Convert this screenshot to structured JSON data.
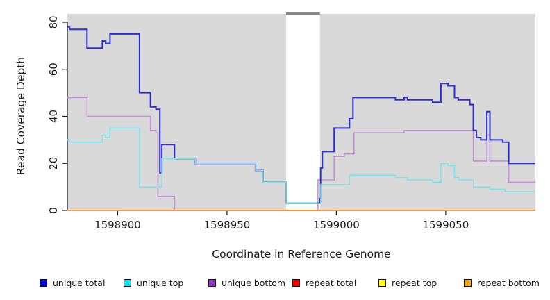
{
  "chart_data": {
    "type": "line",
    "subtype": "step-coverage-plot",
    "title": "",
    "xlabel": "Coordinate in Reference Genome",
    "ylabel": "Read Coverage Depth",
    "xlim": [
      1598877,
      1599091
    ],
    "ylim": [
      0,
      83.5
    ],
    "grid": false,
    "panel_background": "#d9d9d9",
    "x_ticks": [
      {
        "value": 1598900,
        "label": "1598900"
      },
      {
        "value": 1598950,
        "label": "1598950"
      },
      {
        "value": 1599000,
        "label": "1599000"
      },
      {
        "value": 1599050,
        "label": "1599050"
      }
    ],
    "y_ticks": [
      {
        "value": 0,
        "label": "0"
      },
      {
        "value": 20,
        "label": "20"
      },
      {
        "value": 40,
        "label": "40"
      },
      {
        "value": 60,
        "label": "60"
      },
      {
        "value": 80,
        "label": "80"
      }
    ],
    "gap_region": {
      "from": 1598977,
      "to": 1598992.5,
      "fill": "#ffffff",
      "top_bar_color": "#878787"
    },
    "series": [
      {
        "name": "unique total",
        "line_color": "#2d2dd8",
        "legend_color": "#0000dd",
        "width": 2,
        "step_points": [
          [
            1598877,
            78
          ],
          [
            1598878,
            77
          ],
          [
            1598886,
            69
          ],
          [
            1598893,
            72
          ],
          [
            1598894.5,
            71
          ],
          [
            1598896.5,
            75
          ],
          [
            1598910,
            50
          ],
          [
            1598915,
            44
          ],
          [
            1598917.5,
            43
          ],
          [
            1598919.3,
            16
          ],
          [
            1598920.2,
            28
          ],
          [
            1598926,
            22
          ],
          [
            1598935.5,
            20
          ],
          [
            1598963,
            17
          ],
          [
            1598966.5,
            12
          ],
          [
            1598977,
            3
          ],
          [
            1598992.3,
            5
          ],
          [
            1598992.8,
            18
          ],
          [
            1598993.6,
            25
          ],
          [
            1598999,
            35
          ],
          [
            1599006,
            39
          ],
          [
            1599007.6,
            48
          ],
          [
            1599027,
            47
          ],
          [
            1599031,
            48
          ],
          [
            1599032.5,
            47
          ],
          [
            1599044,
            46
          ],
          [
            1599047.8,
            54
          ],
          [
            1599051,
            53
          ],
          [
            1599054,
            48
          ],
          [
            1599055.7,
            47
          ],
          [
            1599061,
            45
          ],
          [
            1599062.6,
            34
          ],
          [
            1599064,
            31
          ],
          [
            1599066,
            30
          ],
          [
            1599068.8,
            42
          ],
          [
            1599070.2,
            30
          ],
          [
            1599076,
            29
          ],
          [
            1599078.8,
            20
          ]
        ]
      },
      {
        "name": "unique top",
        "line_color": "#78e6ee",
        "legend_color": "#00e8f0",
        "width": 1.5,
        "step_points": [
          [
            1598877,
            30
          ],
          [
            1598878,
            29
          ],
          [
            1598893,
            32
          ],
          [
            1598894.5,
            31
          ],
          [
            1598896.5,
            35
          ],
          [
            1598910,
            10
          ],
          [
            1598920.2,
            22
          ],
          [
            1598935.5,
            20
          ],
          [
            1598963,
            17
          ],
          [
            1598966.5,
            12
          ],
          [
            1598977,
            3
          ],
          [
            1598992.9,
            11
          ],
          [
            1599006,
            15
          ],
          [
            1599027,
            14
          ],
          [
            1599032.5,
            13
          ],
          [
            1599044,
            12
          ],
          [
            1599047.8,
            20
          ],
          [
            1599051,
            19
          ],
          [
            1599054,
            14
          ],
          [
            1599056,
            13
          ],
          [
            1599062.6,
            10
          ],
          [
            1599070.2,
            9
          ],
          [
            1599077,
            8
          ]
        ]
      },
      {
        "name": "unique bottom",
        "line_color": "#c58fe0",
        "legend_color": "#9933cc",
        "width": 1.6,
        "step_points": [
          [
            1598877,
            48
          ],
          [
            1598886,
            40
          ],
          [
            1598915,
            34
          ],
          [
            1598917.5,
            33
          ],
          [
            1598918.4,
            6
          ],
          [
            1598926,
            0
          ],
          [
            1598991.6,
            13
          ],
          [
            1598999,
            23
          ],
          [
            1599003.6,
            24
          ],
          [
            1599008.1,
            33
          ],
          [
            1599031,
            34
          ],
          [
            1599062.6,
            21
          ],
          [
            1599068.8,
            32
          ],
          [
            1599070.2,
            21
          ],
          [
            1599078.8,
            12
          ]
        ]
      },
      {
        "name": "repeat total",
        "line_color": "#e03030",
        "legend_color": "#ee0000",
        "width": 1.4,
        "step_points": [
          [
            1598877,
            0
          ]
        ]
      },
      {
        "name": "repeat top",
        "line_color": "#f0e040",
        "legend_color": "#ffff00",
        "width": 1.2,
        "step_points": [
          [
            1598877,
            0
          ]
        ]
      },
      {
        "name": "repeat bottom",
        "line_color": "#ff9e28",
        "legend_color": "#ffa500",
        "width": 1.6,
        "step_points": [
          [
            1598877,
            0
          ]
        ]
      }
    ],
    "draw_order": [
      2,
      0,
      1,
      3,
      4,
      5
    ],
    "legend_position": "bottom"
  },
  "legend": {
    "items": [
      {
        "label": "unique total"
      },
      {
        "label": "unique top"
      },
      {
        "label": "unique bottom"
      },
      {
        "label": "repeat total"
      },
      {
        "label": "repeat top"
      },
      {
        "label": "repeat bottom"
      }
    ]
  },
  "colors": {
    "axis_text": "#1a1a1a",
    "axis_line": "#1a1a1a",
    "panel": "#d9d9d9",
    "background": "#ffffff"
  }
}
